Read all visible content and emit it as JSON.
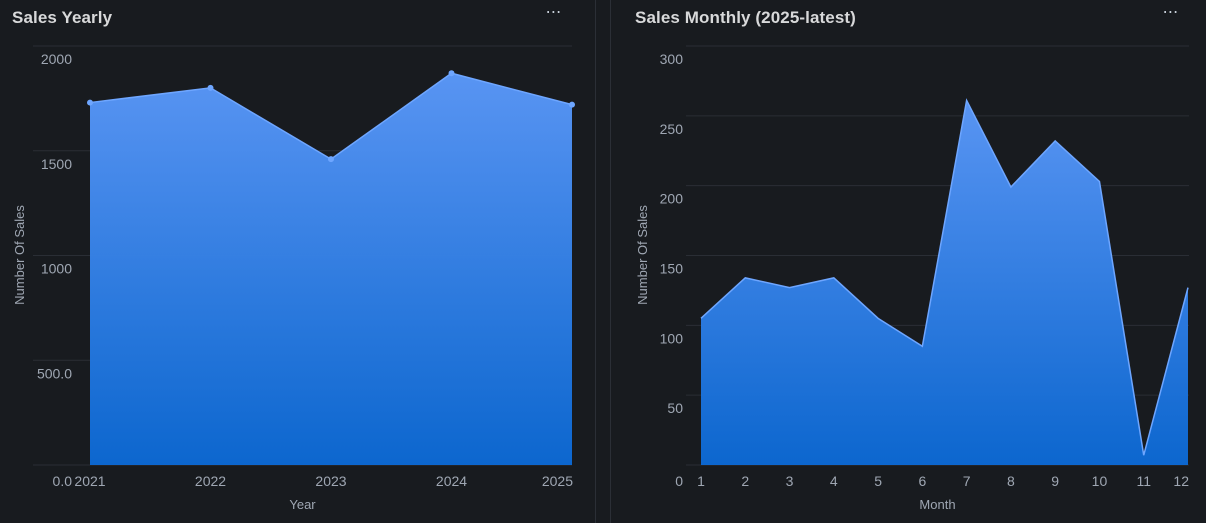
{
  "panels": [
    {
      "title": "Sales Yearly",
      "menu_icon": "⋯"
    },
    {
      "title": "Sales Monthly (2025-latest)",
      "menu_icon": "⋯"
    }
  ],
  "colors": {
    "area_top": "#5a97f7",
    "area_bottom": "#0c68d2",
    "line": "#6ea6ff",
    "grid": "#2a2e35"
  },
  "chart_data": [
    {
      "type": "area",
      "title": "Sales Yearly",
      "xlabel": "Year",
      "ylabel": "Number Of Sales",
      "x": [
        "2021",
        "2022",
        "2023",
        "2024",
        "2025"
      ],
      "series": [
        {
          "values": [
            1730,
            1800,
            1460,
            1870,
            1720
          ]
        }
      ],
      "ylim": [
        0,
        2000
      ],
      "yticks": [
        "0.0",
        "500.0",
        "1000",
        "1500",
        "2000"
      ],
      "grid": true,
      "markers": true
    },
    {
      "type": "area",
      "title": "Sales Monthly (2025-latest)",
      "xlabel": "Month",
      "ylabel": "Number Of Sales",
      "x": [
        "1",
        "2",
        "3",
        "4",
        "5",
        "6",
        "7",
        "8",
        "9",
        "10",
        "11",
        "12"
      ],
      "series": [
        {
          "values": [
            105,
            134,
            127,
            134,
            105,
            85,
            261,
            199,
            232,
            203,
            7,
            127
          ]
        }
      ],
      "ylim": [
        0,
        300
      ],
      "yticks": [
        "0",
        "50",
        "100",
        "150",
        "200",
        "250",
        "300"
      ],
      "grid": true,
      "markers": false
    }
  ]
}
